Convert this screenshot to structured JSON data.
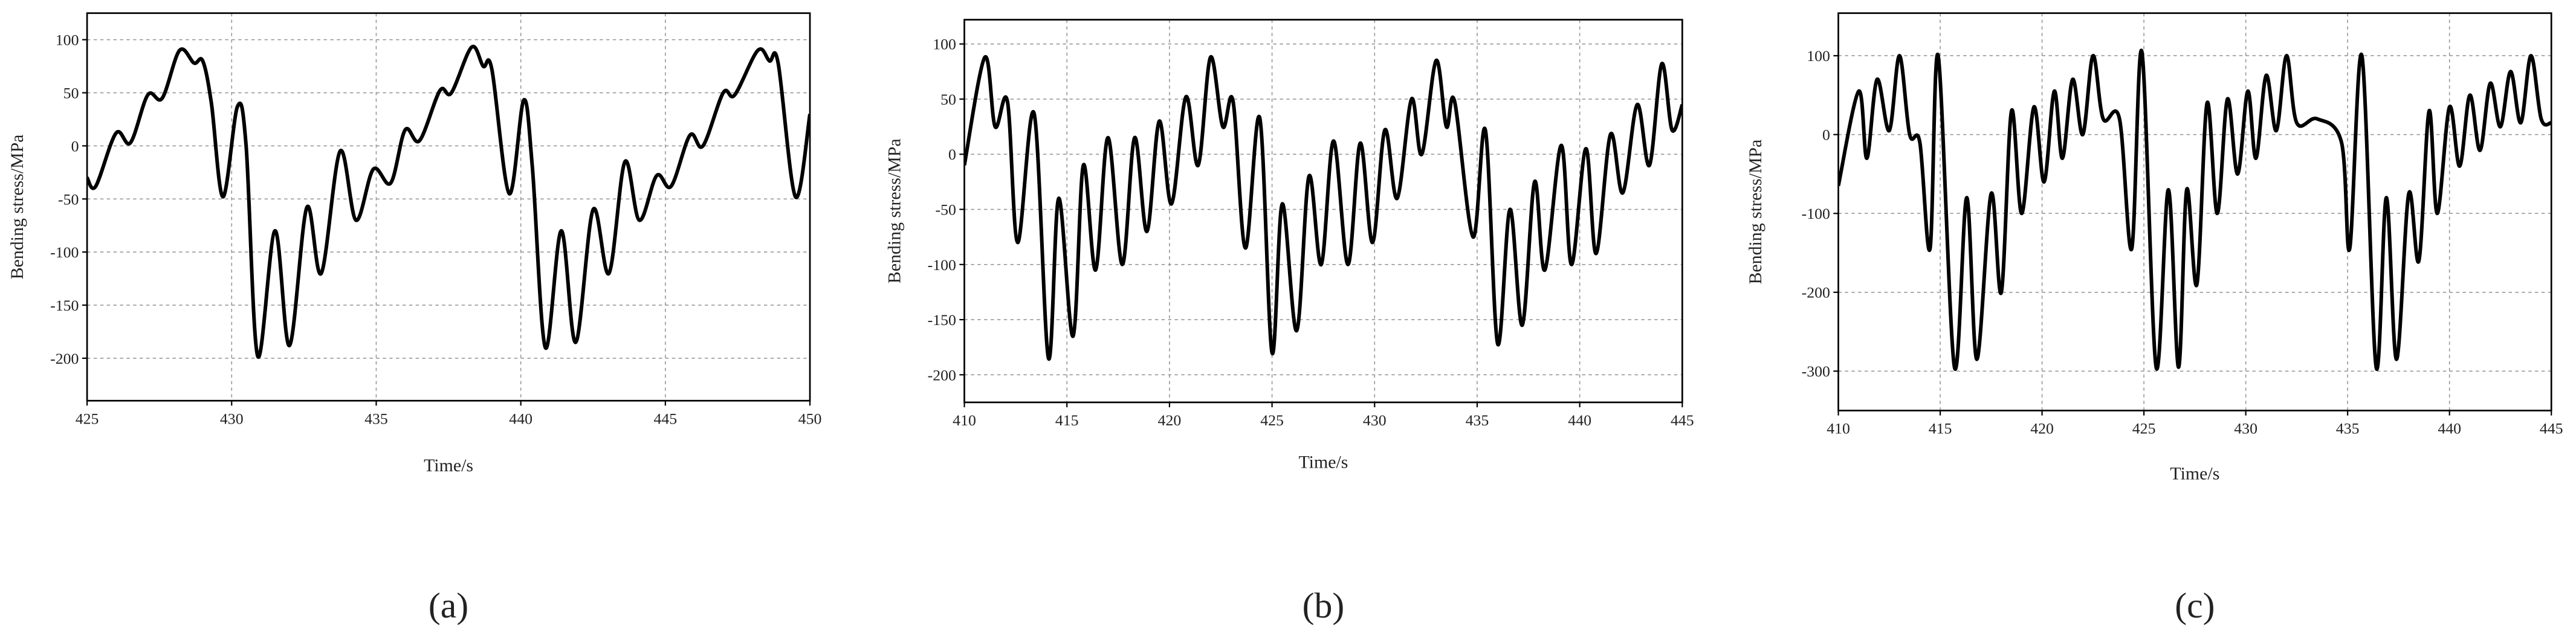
{
  "chart_data": [
    {
      "type": "line",
      "panel_label": "(a)",
      "xlabel": "Time/s",
      "ylabel": "Bending stress/MPa",
      "color": "#000000",
      "grid": true,
      "xlim": [
        425,
        450
      ],
      "xticks": [
        425,
        430,
        435,
        440,
        445,
        450
      ],
      "ylim": [
        -240,
        125
      ],
      "yticks": [
        -200,
        -150,
        -100,
        -50,
        0,
        50,
        100
      ],
      "x": [
        425,
        425.3,
        426,
        426.5,
        427.1,
        427.6,
        428.2,
        428.7,
        429,
        429.3,
        429.7,
        430.2,
        430.5,
        430.9,
        431.5,
        432,
        432.6,
        433.1,
        433.75,
        434.3,
        434.9,
        435.5,
        436,
        436.5,
        437.2,
        437.6,
        438.3,
        438.7,
        439,
        439.6,
        440.1,
        440.4,
        440.85,
        441.4,
        441.9,
        442.5,
        443.05,
        443.6,
        444.1,
        444.7,
        445.2,
        445.85,
        446.3,
        447,
        447.4,
        448.2,
        448.6,
        448.9,
        449.5,
        450
      ],
      "values": [
        -30,
        -38,
        12,
        3,
        48,
        45,
        90,
        78,
        80,
        40,
        -48,
        37,
        0,
        -198,
        -80,
        -188,
        -58,
        -120,
        -5,
        -70,
        -22,
        -35,
        15,
        5,
        52,
        50,
        93,
        75,
        72,
        -45,
        43,
        -20,
        -190,
        -80,
        -185,
        -60,
        -120,
        -15,
        -70,
        -28,
        -38,
        10,
        0,
        50,
        48,
        90,
        80,
        78,
        -48,
        30
      ]
    },
    {
      "type": "line",
      "panel_label": "(b)",
      "xlabel": "Time/s",
      "ylabel": "Bending stress/MPa",
      "color": "#000000",
      "grid": true,
      "xlim": [
        410,
        445
      ],
      "xticks": [
        410,
        415,
        420,
        425,
        430,
        435,
        440,
        445
      ],
      "ylim": [
        -225,
        122
      ],
      "yticks": [
        -200,
        -150,
        -100,
        -50,
        0,
        50,
        100
      ],
      "x": [
        410,
        411,
        411.5,
        412.1,
        412.6,
        413.4,
        414.1,
        414.6,
        415.3,
        415.8,
        416.4,
        417,
        417.7,
        418.3,
        418.9,
        419.5,
        420.1,
        420.8,
        421.4,
        422,
        422.6,
        423.1,
        423.7,
        424.4,
        425,
        425.5,
        426.2,
        426.8,
        427.4,
        428,
        428.7,
        429.3,
        429.9,
        430.5,
        431.1,
        431.8,
        432.3,
        433,
        433.5,
        433.9,
        434.8,
        435.4,
        436,
        436.6,
        437.2,
        437.8,
        438.3,
        439.1,
        439.6,
        440.3,
        440.8,
        441.5,
        442.1,
        442.8,
        443.4,
        444,
        444.5,
        445
      ],
      "values": [
        -10,
        88,
        25,
        48,
        -80,
        37,
        -185,
        -40,
        -165,
        -10,
        -105,
        15,
        -100,
        15,
        -70,
        30,
        -45,
        52,
        -10,
        88,
        25,
        48,
        -85,
        33,
        -180,
        -45,
        -160,
        -20,
        -100,
        12,
        -100,
        10,
        -80,
        22,
        -40,
        50,
        0,
        85,
        25,
        48,
        -75,
        22,
        -172,
        -50,
        -155,
        -25,
        -105,
        8,
        -100,
        5,
        -90,
        18,
        -35,
        45,
        -10,
        82,
        22,
        45
      ]
    },
    {
      "type": "line",
      "panel_label": "(c)",
      "xlabel": "Time/s",
      "ylabel": "Bending stress/MPa",
      "color": "#000000",
      "grid": true,
      "xlim": [
        410,
        445
      ],
      "xticks": [
        410,
        415,
        420,
        425,
        430,
        435,
        440,
        445
      ],
      "ylim": [
        -350,
        154
      ],
      "yticks": [
        -300,
        -200,
        -100,
        0,
        100
      ],
      "x": [
        410,
        411,
        411.4,
        411.9,
        412.5,
        413,
        413.5,
        414,
        414.5,
        414.9,
        415.7,
        416.3,
        416.8,
        417.5,
        418,
        418.5,
        419,
        419.6,
        420.1,
        420.6,
        421,
        421.5,
        422,
        422.5,
        423,
        423.8,
        424.4,
        424.9,
        425.6,
        426.2,
        426.7,
        427.1,
        427.6,
        428.1,
        428.6,
        429.1,
        429.6,
        430.1,
        430.5,
        431,
        431.5,
        432,
        432.5,
        433.5,
        434.7,
        435.1,
        435.7,
        436.4,
        436.9,
        437.4,
        438,
        438.5,
        439,
        439.4,
        440,
        440.5,
        441,
        441.5,
        442,
        442.5,
        443,
        443.5,
        444,
        444.5,
        445
      ],
      "values": [
        -65,
        55,
        -30,
        70,
        5,
        100,
        0,
        -10,
        -145,
        100,
        -295,
        -80,
        -285,
        -75,
        -200,
        30,
        -100,
        35,
        -60,
        55,
        -30,
        70,
        0,
        100,
        20,
        20,
        -145,
        105,
        -295,
        -70,
        -295,
        -70,
        -190,
        40,
        -100,
        45,
        -50,
        55,
        -30,
        75,
        5,
        100,
        15,
        20,
        -10,
        -145,
        100,
        -295,
        -80,
        -285,
        -75,
        -160,
        30,
        -100,
        35,
        -40,
        50,
        -20,
        65,
        10,
        80,
        15,
        100,
        20,
        15
      ]
    }
  ]
}
